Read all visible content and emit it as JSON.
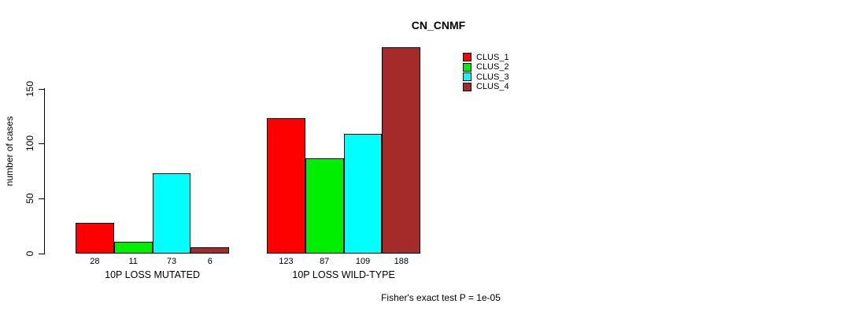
{
  "chart": {
    "title": "CN_CNMF",
    "ylabel": "number of cases",
    "footer": "Fisher's exact test P = 1e-05"
  },
  "chart_data": {
    "type": "bar",
    "title": "CN_CNMF",
    "xlabel": "",
    "ylabel": "number of cases",
    "categories": [
      "10P LOSS MUTATED",
      "10P LOSS WILD-TYPE"
    ],
    "series": [
      {
        "name": "CLUS_1",
        "color": "#FF0000",
        "values": [
          28,
          123
        ]
      },
      {
        "name": "CLUS_2",
        "color": "#00EE00",
        "values": [
          11,
          87
        ]
      },
      {
        "name": "CLUS_3",
        "color": "#00FFFF",
        "values": [
          73,
          109
        ]
      },
      {
        "name": "CLUS_4",
        "color": "#A52A2A",
        "values": [
          6,
          188
        ]
      }
    ],
    "bar_value_labels": [
      [
        28,
        11,
        73,
        6
      ],
      [
        123,
        87,
        109,
        188
      ]
    ],
    "yticks": [
      0,
      50,
      100,
      150
    ],
    "ylim": [
      0,
      195
    ],
    "grid": false,
    "legend_position": "top-right",
    "legend_entries": [
      "CLUS_1",
      "CLUS_2",
      "CLUS_3",
      "CLUS_4"
    ],
    "annotation": "Fisher's exact test P = 1e-05",
    "bar_border_color": "#000000",
    "background_color": "#FFFFFF"
  }
}
